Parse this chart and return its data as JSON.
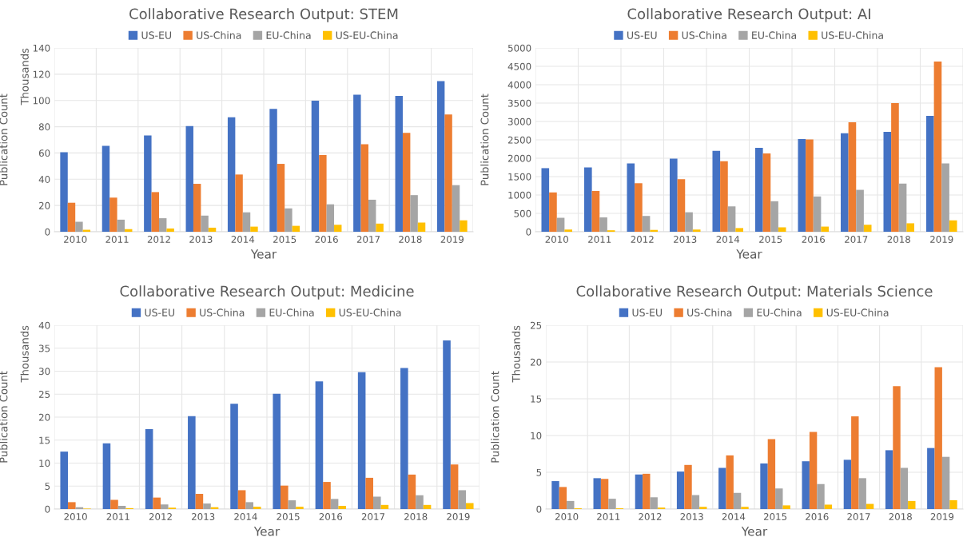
{
  "chart_data": [
    {
      "type": "bar",
      "title": "Collaborative Research Output: STEM",
      "xlabel": "Year",
      "ylabel": "Publication Count",
      "annotations": [
        "Thousands"
      ],
      "categories": [
        "2010",
        "2011",
        "2012",
        "2013",
        "2014",
        "2015",
        "2016",
        "2017",
        "2018",
        "2019"
      ],
      "series": [
        {
          "name": "US-EU",
          "color": "#4472c4",
          "values": [
            60.5,
            65.5,
            73.3,
            80.5,
            87.2,
            93.6,
            99.8,
            104.4,
            103.5,
            114.8
          ]
        },
        {
          "name": "US-China",
          "color": "#ed7d31",
          "values": [
            22.1,
            26,
            30.2,
            36.5,
            43.6,
            51.7,
            58.5,
            66.6,
            75.4,
            89.3
          ]
        },
        {
          "name": "EU-China",
          "color": "#a5a5a5",
          "values": [
            7.6,
            9.2,
            10.3,
            12.3,
            14.8,
            17.8,
            20.9,
            24.4,
            27.9,
            35.5
          ]
        },
        {
          "name": "US-EU-China",
          "color": "#ffc000",
          "values": [
            1.5,
            2,
            2.5,
            3.1,
            3.9,
            4.5,
            5.3,
            6.2,
            7,
            8.7
          ]
        }
      ],
      "ylim": [
        0,
        140
      ],
      "yticks": [
        0,
        20,
        40,
        60,
        80,
        100,
        120,
        140
      ],
      "grid": true,
      "legend": "top"
    },
    {
      "type": "bar",
      "title": "Collaborative Research Output: AI",
      "xlabel": "Year",
      "ylabel": "Publication Count",
      "categories": [
        "2010",
        "2011",
        "2012",
        "2013",
        "2014",
        "2015",
        "2016",
        "2017",
        "2018",
        "2019"
      ],
      "series": [
        {
          "name": "US-EU",
          "color": "#4472c4",
          "values": [
            1730,
            1750,
            1860,
            1990,
            2200,
            2280,
            2520,
            2680,
            2720,
            3150
          ]
        },
        {
          "name": "US-China",
          "color": "#ed7d31",
          "values": [
            1070,
            1110,
            1320,
            1430,
            1920,
            2130,
            2510,
            2980,
            3500,
            4630
          ]
        },
        {
          "name": "EU-China",
          "color": "#a5a5a5",
          "values": [
            380,
            390,
            430,
            530,
            690,
            830,
            960,
            1140,
            1310,
            1860
          ]
        },
        {
          "name": "US-EU-China",
          "color": "#ffc000",
          "values": [
            60,
            40,
            50,
            60,
            100,
            120,
            140,
            190,
            230,
            310
          ]
        }
      ],
      "ylim": [
        0,
        5000
      ],
      "yticks": [
        0,
        500,
        1000,
        1500,
        2000,
        2500,
        3000,
        3500,
        4000,
        4500,
        5000
      ],
      "grid": true,
      "legend": "top"
    },
    {
      "type": "bar",
      "title": "Collaborative Research Output: Medicine",
      "xlabel": "Year",
      "ylabel": "Publication Count",
      "annotations": [
        "Thousands"
      ],
      "categories": [
        "2010",
        "2011",
        "2012",
        "2013",
        "2014",
        "2015",
        "2016",
        "2017",
        "2018",
        "2019"
      ],
      "series": [
        {
          "name": "US-EU",
          "color": "#4472c4",
          "values": [
            12.5,
            14.3,
            17.4,
            20.2,
            22.9,
            25.1,
            27.8,
            29.8,
            30.7,
            36.7
          ]
        },
        {
          "name": "US-China",
          "color": "#ed7d31",
          "values": [
            1.5,
            2.0,
            2.5,
            3.3,
            4.1,
            5.1,
            5.9,
            6.8,
            7.5,
            9.7
          ]
        },
        {
          "name": "EU-China",
          "color": "#a5a5a5",
          "values": [
            0.4,
            0.7,
            1.0,
            1.2,
            1.5,
            1.9,
            2.2,
            2.7,
            3.0,
            4.1
          ]
        },
        {
          "name": "US-EU-China",
          "color": "#ffc000",
          "values": [
            0.1,
            0.2,
            0.3,
            0.4,
            0.5,
            0.5,
            0.7,
            0.9,
            0.9,
            1.3
          ]
        }
      ],
      "ylim": [
        0,
        40
      ],
      "yticks": [
        0,
        5,
        10,
        15,
        20,
        25,
        30,
        35,
        40
      ],
      "grid": true,
      "legend": "top"
    },
    {
      "type": "bar",
      "title": "Collaborative Research Output: Materials Science",
      "xlabel": "Year",
      "ylabel": "Publication Count",
      "annotations": [
        "Thousands"
      ],
      "categories": [
        "2010",
        "2011",
        "2012",
        "2013",
        "2014",
        "2015",
        "2016",
        "2017",
        "2018",
        "2019"
      ],
      "series": [
        {
          "name": "US-EU",
          "color": "#4472c4",
          "values": [
            3.8,
            4.2,
            4.7,
            5.1,
            5.6,
            6.2,
            6.5,
            6.7,
            8.0,
            8.3
          ]
        },
        {
          "name": "US-China",
          "color": "#ed7d31",
          "values": [
            3.0,
            4.1,
            4.8,
            6.0,
            7.3,
            9.5,
            10.5,
            12.6,
            16.7,
            19.3
          ]
        },
        {
          "name": "EU-China",
          "color": "#a5a5a5",
          "values": [
            1.1,
            1.4,
            1.6,
            1.9,
            2.2,
            2.8,
            3.4,
            4.2,
            5.6,
            7.1
          ]
        },
        {
          "name": "US-EU-China",
          "color": "#ffc000",
          "values": [
            0.1,
            0.1,
            0.2,
            0.3,
            0.3,
            0.5,
            0.6,
            0.7,
            1.1,
            1.2
          ]
        }
      ],
      "ylim": [
        0,
        25
      ],
      "yticks": [
        0,
        5,
        10,
        15,
        20,
        25
      ],
      "grid": true,
      "legend": "top"
    }
  ]
}
